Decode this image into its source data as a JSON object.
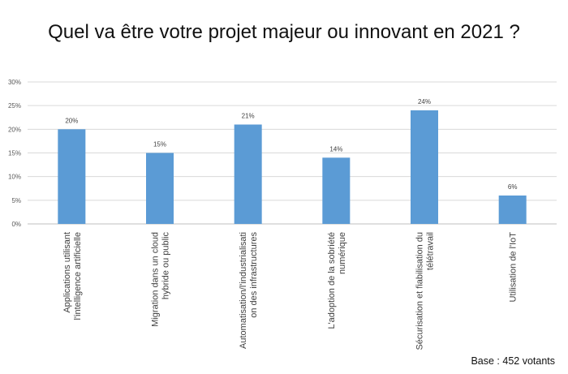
{
  "chart_data": {
    "type": "bar",
    "title": "Quel va être votre projet majeur ou innovant en 2021 ?",
    "xlabel": "",
    "ylabel": "",
    "categories": [
      [
        "Applications utilisant",
        "l'intelligence artificielle"
      ],
      [
        "Migration dans un cloud",
        "hybride ou public"
      ],
      [
        "Automatisation/l'industrialisati",
        "on des infrastructures"
      ],
      [
        "L'adoption de la sobriété",
        "numérique"
      ],
      [
        "Sécurisation et fiabilisation du",
        "télétravail"
      ],
      [
        "Utilisation de l'IoT"
      ]
    ],
    "values": [
      20,
      15,
      21,
      14,
      24,
      6
    ],
    "value_labels": [
      "20%",
      "15%",
      "21%",
      "14%",
      "24%",
      "6%"
    ],
    "ylim": [
      0,
      30
    ],
    "yticks": [
      0,
      5,
      10,
      15,
      20,
      25,
      30
    ],
    "ytick_labels": [
      "0%",
      "5%",
      "10%",
      "15%",
      "20%",
      "25%",
      "30%"
    ],
    "grid": true,
    "bar_color": "#5b9bd5",
    "footnote": "Base : 452 votants"
  }
}
